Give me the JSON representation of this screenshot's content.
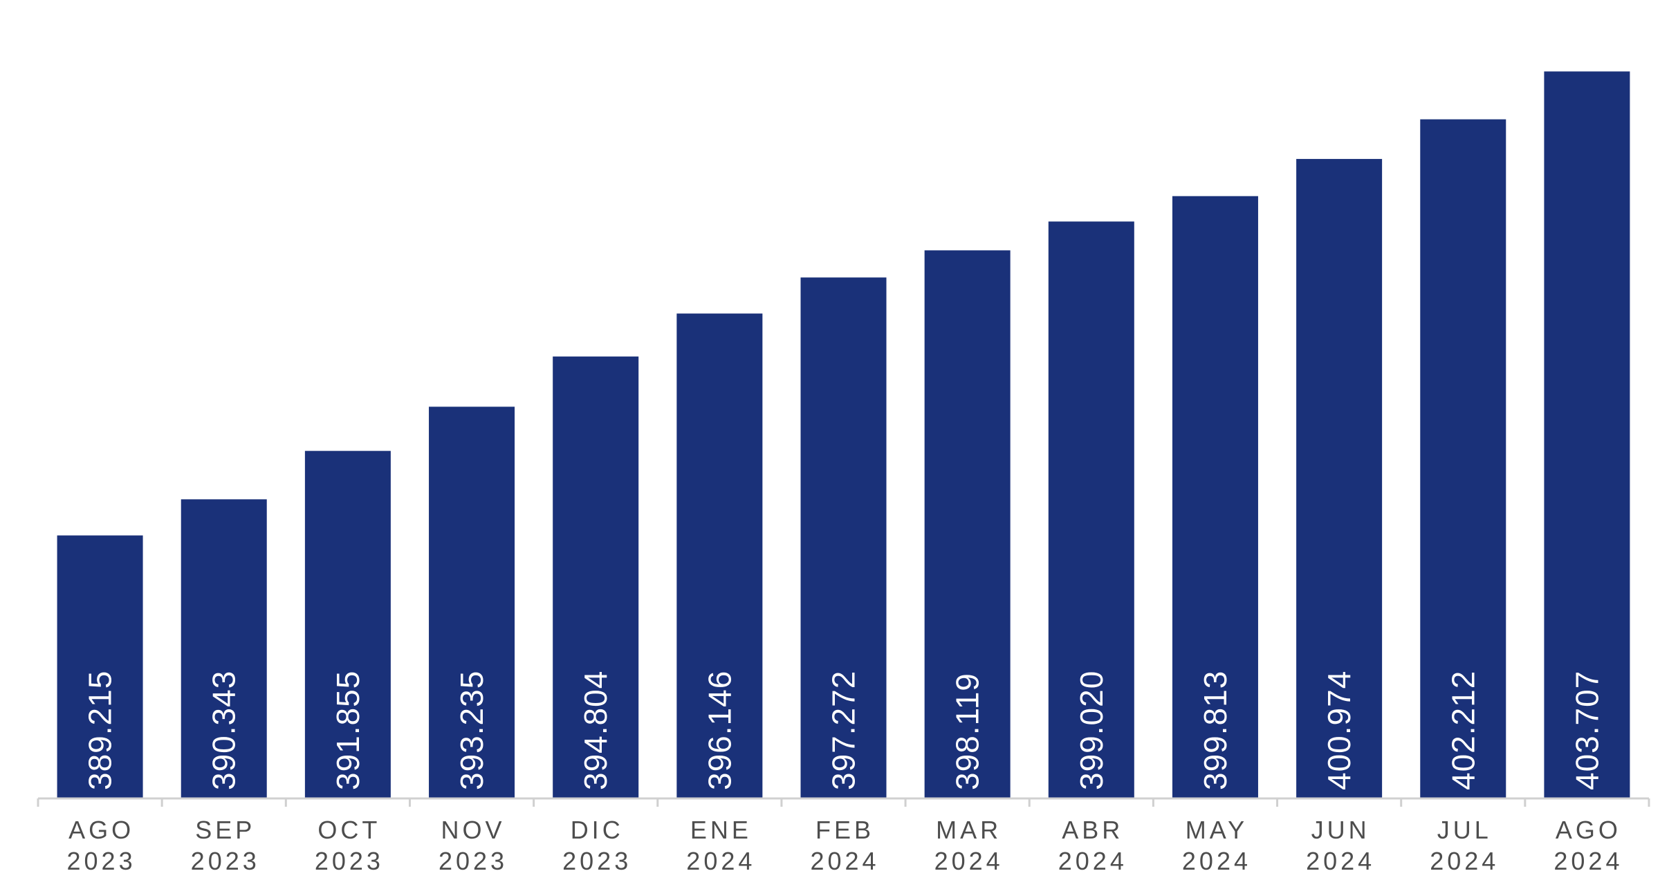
{
  "chart_data": {
    "type": "bar",
    "categories": [
      [
        "AGO",
        "2023"
      ],
      [
        "SEP",
        "2023"
      ],
      [
        "OCT",
        "2023"
      ],
      [
        "NOV",
        "2023"
      ],
      [
        "DIC",
        "2023"
      ],
      [
        "ENE",
        "2024"
      ],
      [
        "FEB",
        "2024"
      ],
      [
        "MAR",
        "2024"
      ],
      [
        "ABR",
        "2024"
      ],
      [
        "MAY",
        "2024"
      ],
      [
        "JUN",
        "2024"
      ],
      [
        "JUL",
        "2024"
      ],
      [
        "AGO",
        "2024"
      ]
    ],
    "values": [
      389215,
      390343,
      391855,
      393235,
      394804,
      396146,
      397272,
      398119,
      399020,
      399813,
      400974,
      402212,
      403707
    ],
    "value_labels": [
      "389.215",
      "390.343",
      "391.855",
      "393.235",
      "394.804",
      "396.146",
      "397.272",
      "398.119",
      "399.020",
      "399.813",
      "400.974",
      "402.212",
      "403.707"
    ],
    "title": "",
    "xlabel": "",
    "ylabel": "",
    "ylim": [
      381000,
      404600
    ],
    "grid": false,
    "legend": "none",
    "colors": {
      "bar": "#1a3179",
      "bar_label": "#ffffff",
      "axis": "#d0d0d0",
      "tick_label": "#4d4d4d"
    }
  }
}
